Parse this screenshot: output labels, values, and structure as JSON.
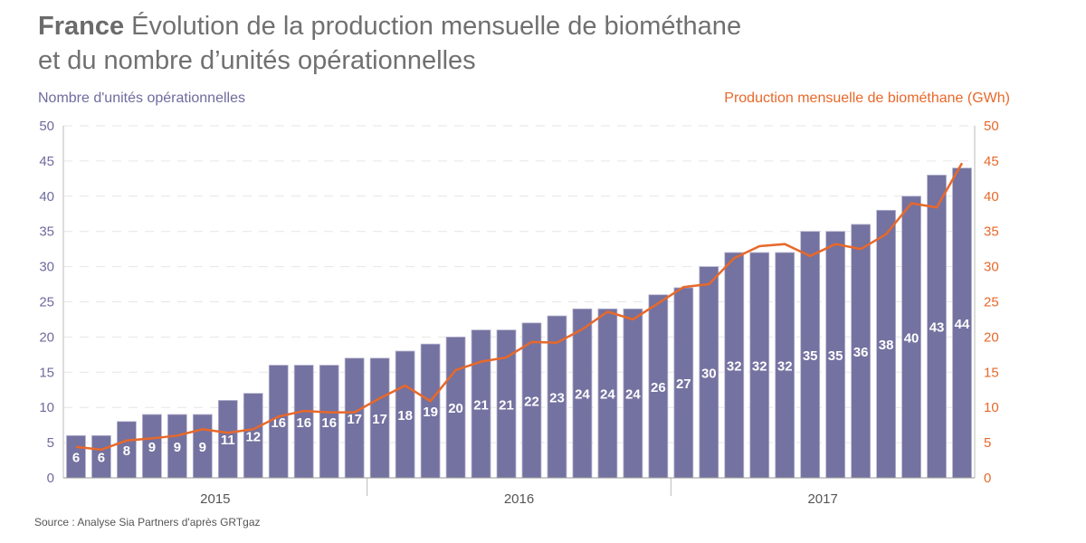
{
  "title": {
    "bold": "France",
    "rest": "Évolution de la production mensuelle de biométhane",
    "line2": "et du nombre d’unités opérationnelles"
  },
  "source": "Source : Analyse Sia Partners d'après GRTgaz",
  "chart_data": {
    "type": "bar+line",
    "ylabel_left": "Nombre d'unités opérationnelles",
    "ylabel_right": "Production mensuelle de biométhane (GWh)",
    "ylim_left": [
      0,
      50
    ],
    "ylim_right": [
      0,
      50
    ],
    "yticks": [
      0,
      5,
      10,
      15,
      20,
      25,
      30,
      35,
      40,
      45,
      50
    ],
    "year_labels": [
      "2015",
      "2016",
      "2017"
    ],
    "grid": true,
    "colors": {
      "bars": "#7472a0",
      "line": "#e8682a"
    },
    "series": [
      {
        "type": "bar",
        "axis": "left",
        "values": [
          6,
          6,
          8,
          9,
          9,
          9,
          11,
          12,
          16,
          16,
          16,
          17,
          17,
          18,
          19,
          20,
          21,
          21,
          22,
          23,
          24,
          24,
          24,
          26,
          27,
          30,
          32,
          32,
          32,
          35,
          35,
          36,
          38,
          40,
          43,
          44
        ]
      },
      {
        "type": "line",
        "axis": "right",
        "values": [
          4.4,
          4.0,
          5.3,
          5.6,
          6.0,
          6.9,
          6.4,
          6.9,
          8.7,
          9.5,
          9.3,
          9.3,
          11.3,
          13.1,
          10.9,
          15.3,
          16.5,
          17.1,
          19.3,
          19.2,
          21.1,
          23.6,
          22.5,
          24.8,
          27.1,
          27.5,
          31.2,
          32.9,
          33.2,
          31.5,
          33.2,
          32.5,
          34.6,
          39.0,
          38.4,
          44.7
        ]
      }
    ]
  }
}
